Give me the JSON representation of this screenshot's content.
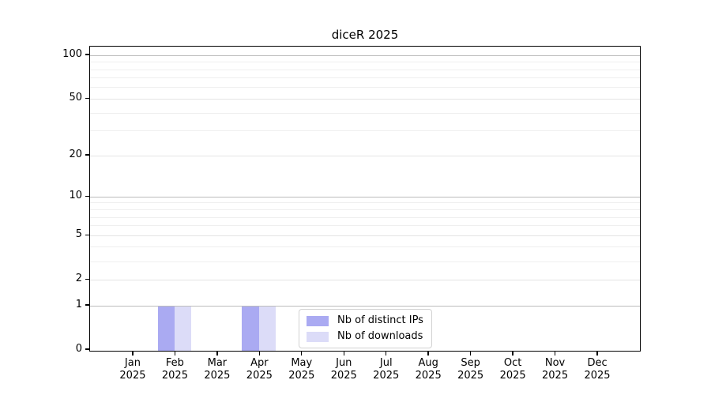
{
  "chart_data": {
    "type": "bar",
    "title": "diceR 2025",
    "categories": [
      "Jan",
      "Feb",
      "Mar",
      "Apr",
      "May",
      "Jun",
      "Jul",
      "Aug",
      "Sep",
      "Oct",
      "Nov",
      "Dec"
    ],
    "x_year_label": "2025",
    "series": [
      {
        "name": "Nb of distinct IPs",
        "color": "#aaaaf2",
        "values": [
          0,
          1,
          0,
          1,
          0,
          0,
          0,
          0,
          0,
          0,
          0,
          0
        ]
      },
      {
        "name": "Nb of downloads",
        "color": "#dcdcf8",
        "values": [
          0,
          1,
          0,
          1,
          0,
          0,
          0,
          0,
          0,
          0,
          0,
          0
        ]
      }
    ],
    "y_axis": {
      "scale": "log1p",
      "tick_labels": [
        0,
        1,
        2,
        5,
        10,
        20,
        50,
        100
      ],
      "decade_gridlines": [
        1,
        10,
        100
      ],
      "mid_gridlines": [
        2,
        5,
        20,
        50
      ],
      "minor_gridlines": [
        3,
        4,
        6,
        7,
        8,
        9,
        30,
        40,
        60,
        70,
        80,
        90
      ],
      "ylim": [
        0,
        115
      ]
    },
    "legend": {
      "position": "lower center",
      "entries": [
        "Nb of distinct IPs",
        "Nb of downloads"
      ]
    },
    "colors": {
      "grid_decade": "#bcbcbc",
      "grid_mid": "#e4e4e4",
      "grid_minor": "#efefef",
      "spine": "#000000",
      "text": "#000000",
      "background": "#ffffff"
    }
  }
}
